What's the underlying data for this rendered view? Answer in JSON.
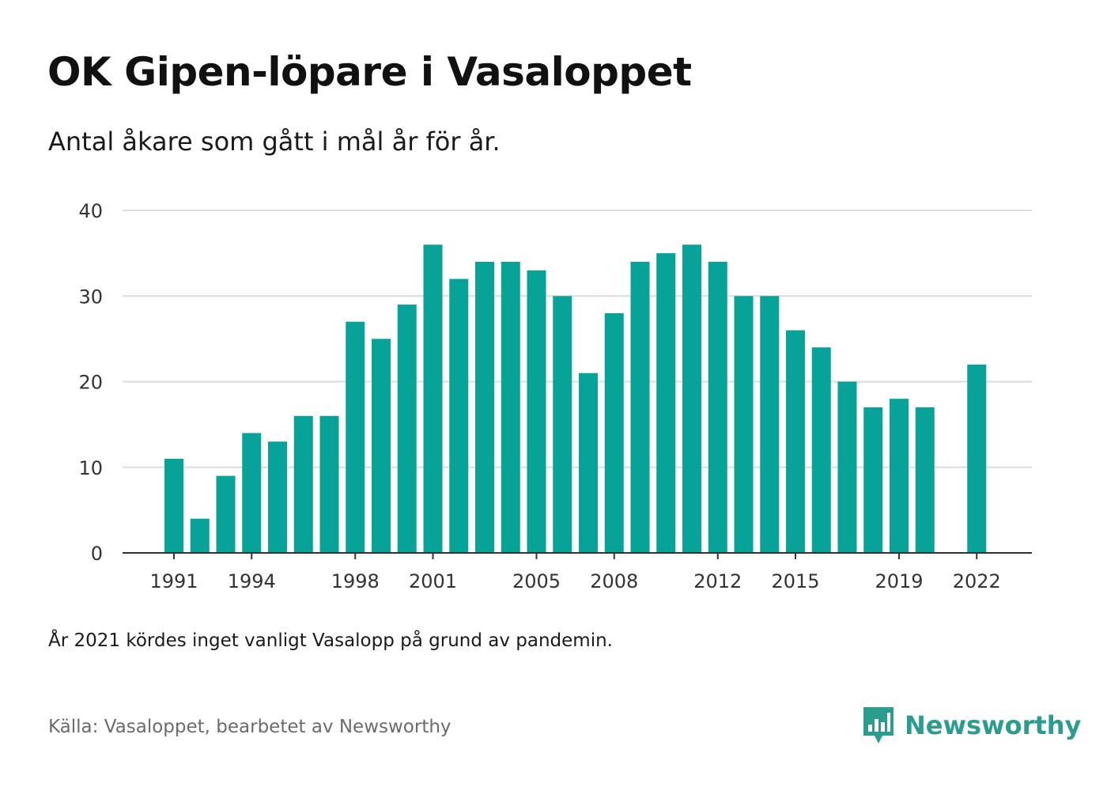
{
  "title": "OK Gipen-löpare i Vasaloppet",
  "subtitle": "Antal åkare som gått i mål år för år.",
  "note": "År 2021 kördes inget vanligt Vasalopp på grund av pandemin.",
  "source": "Källa: Vasaloppet, bearbetet av Newsworthy",
  "brand": {
    "name": "Newsworthy",
    "logo_icon": "newsworthy-logo-icon"
  },
  "colors": {
    "bar": "#08a398",
    "brand": "#2a9d8f",
    "grid": "#dcdcdc",
    "axis": "#333333"
  },
  "chart_data": {
    "type": "bar",
    "title": "OK Gipen-löpare i Vasaloppet",
    "subtitle": "Antal åkare som gått i mål år för år.",
    "xlabel": "",
    "ylabel": "",
    "categories": [
      1991,
      1992,
      1993,
      1994,
      1995,
      1996,
      1997,
      1998,
      1999,
      2000,
      2001,
      2002,
      2003,
      2004,
      2005,
      2006,
      2007,
      2008,
      2009,
      2010,
      2011,
      2012,
      2013,
      2014,
      2015,
      2016,
      2017,
      2018,
      2019,
      2020,
      2021,
      2022
    ],
    "values": [
      11,
      4,
      9,
      14,
      13,
      16,
      16,
      27,
      25,
      29,
      36,
      32,
      34,
      34,
      33,
      30,
      21,
      28,
      34,
      35,
      36,
      34,
      30,
      30,
      26,
      24,
      20,
      17,
      18,
      17,
      null,
      22
    ],
    "ylim": [
      0,
      40
    ],
    "yticks": [
      0,
      10,
      20,
      30,
      40
    ],
    "xtick_labels": [
      "1991",
      "1994",
      "1998",
      "2001",
      "2005",
      "2008",
      "2012",
      "2015",
      "2019",
      "2022"
    ],
    "grid": true,
    "legend": "none"
  }
}
